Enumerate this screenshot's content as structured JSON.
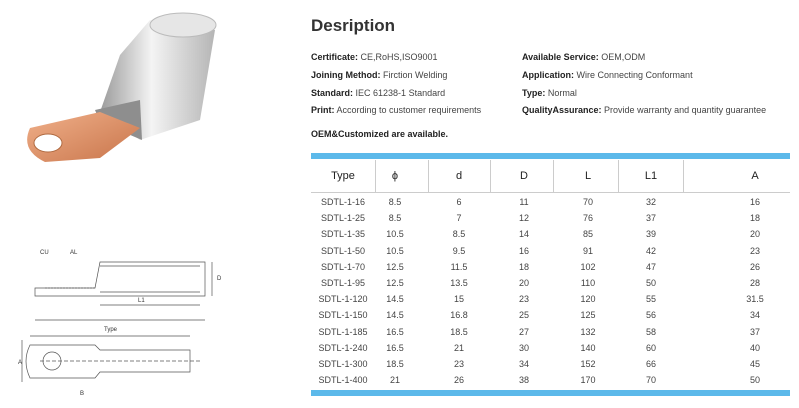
{
  "header": {
    "title": "Desription"
  },
  "specs": [
    {
      "label": "Certificate:",
      "value": "CE,RoHS,ISO9001"
    },
    {
      "label": "Available Service:",
      "value": "OEM,ODM"
    },
    {
      "label": "Joining Method:",
      "value": "Firction Welding"
    },
    {
      "label": "Application:",
      "value": "Wire Connecting Conformant"
    },
    {
      "label": "Standard:",
      "value": "IEC 61238-1 Standard"
    },
    {
      "label": "Type:",
      "value": "Normal"
    },
    {
      "label": "Print:",
      "value": "According to customer requirements"
    },
    {
      "label": "QualityAssurance:",
      "value": "Provide warranty and quantity guarantee"
    }
  ],
  "note": "OEM&Customized are available.",
  "table": {
    "columns": [
      "Type",
      "ϕ",
      "d",
      "D",
      "L",
      "L1",
      "A"
    ],
    "rows": [
      [
        "SDTL-1-16",
        8.5,
        6,
        11,
        70,
        32,
        16
      ],
      [
        "SDTL-1-25",
        8.5,
        7,
        12,
        76,
        37,
        18
      ],
      [
        "SDTL-1-35",
        10.5,
        8.5,
        14,
        85,
        39,
        20
      ],
      [
        "SDTL-1-50",
        10.5,
        9.5,
        16,
        91,
        42,
        23
      ],
      [
        "SDTL-1-70",
        12.5,
        11.5,
        18,
        102,
        47,
        26
      ],
      [
        "SDTL-1-95",
        12.5,
        13.5,
        20,
        110,
        50,
        28
      ],
      [
        "SDTL-1-120",
        14.5,
        15,
        23,
        120,
        55,
        31.5
      ],
      [
        "SDTL-1-150",
        14.5,
        16.8,
        25,
        125,
        56,
        34
      ],
      [
        "SDTL-1-185",
        16.5,
        18.5,
        27,
        132,
        58,
        37
      ],
      [
        "SDTL-1-240",
        16.5,
        21,
        30,
        140,
        60,
        40
      ],
      [
        "SDTL-1-300",
        18.5,
        23,
        34,
        152,
        66,
        45
      ],
      [
        "SDTL-1-400",
        21,
        26,
        38,
        170,
        70,
        50
      ]
    ]
  },
  "drawing": {
    "labels": [
      "CU",
      "AL",
      "D",
      "L1",
      "Type",
      "A",
      "B"
    ]
  }
}
